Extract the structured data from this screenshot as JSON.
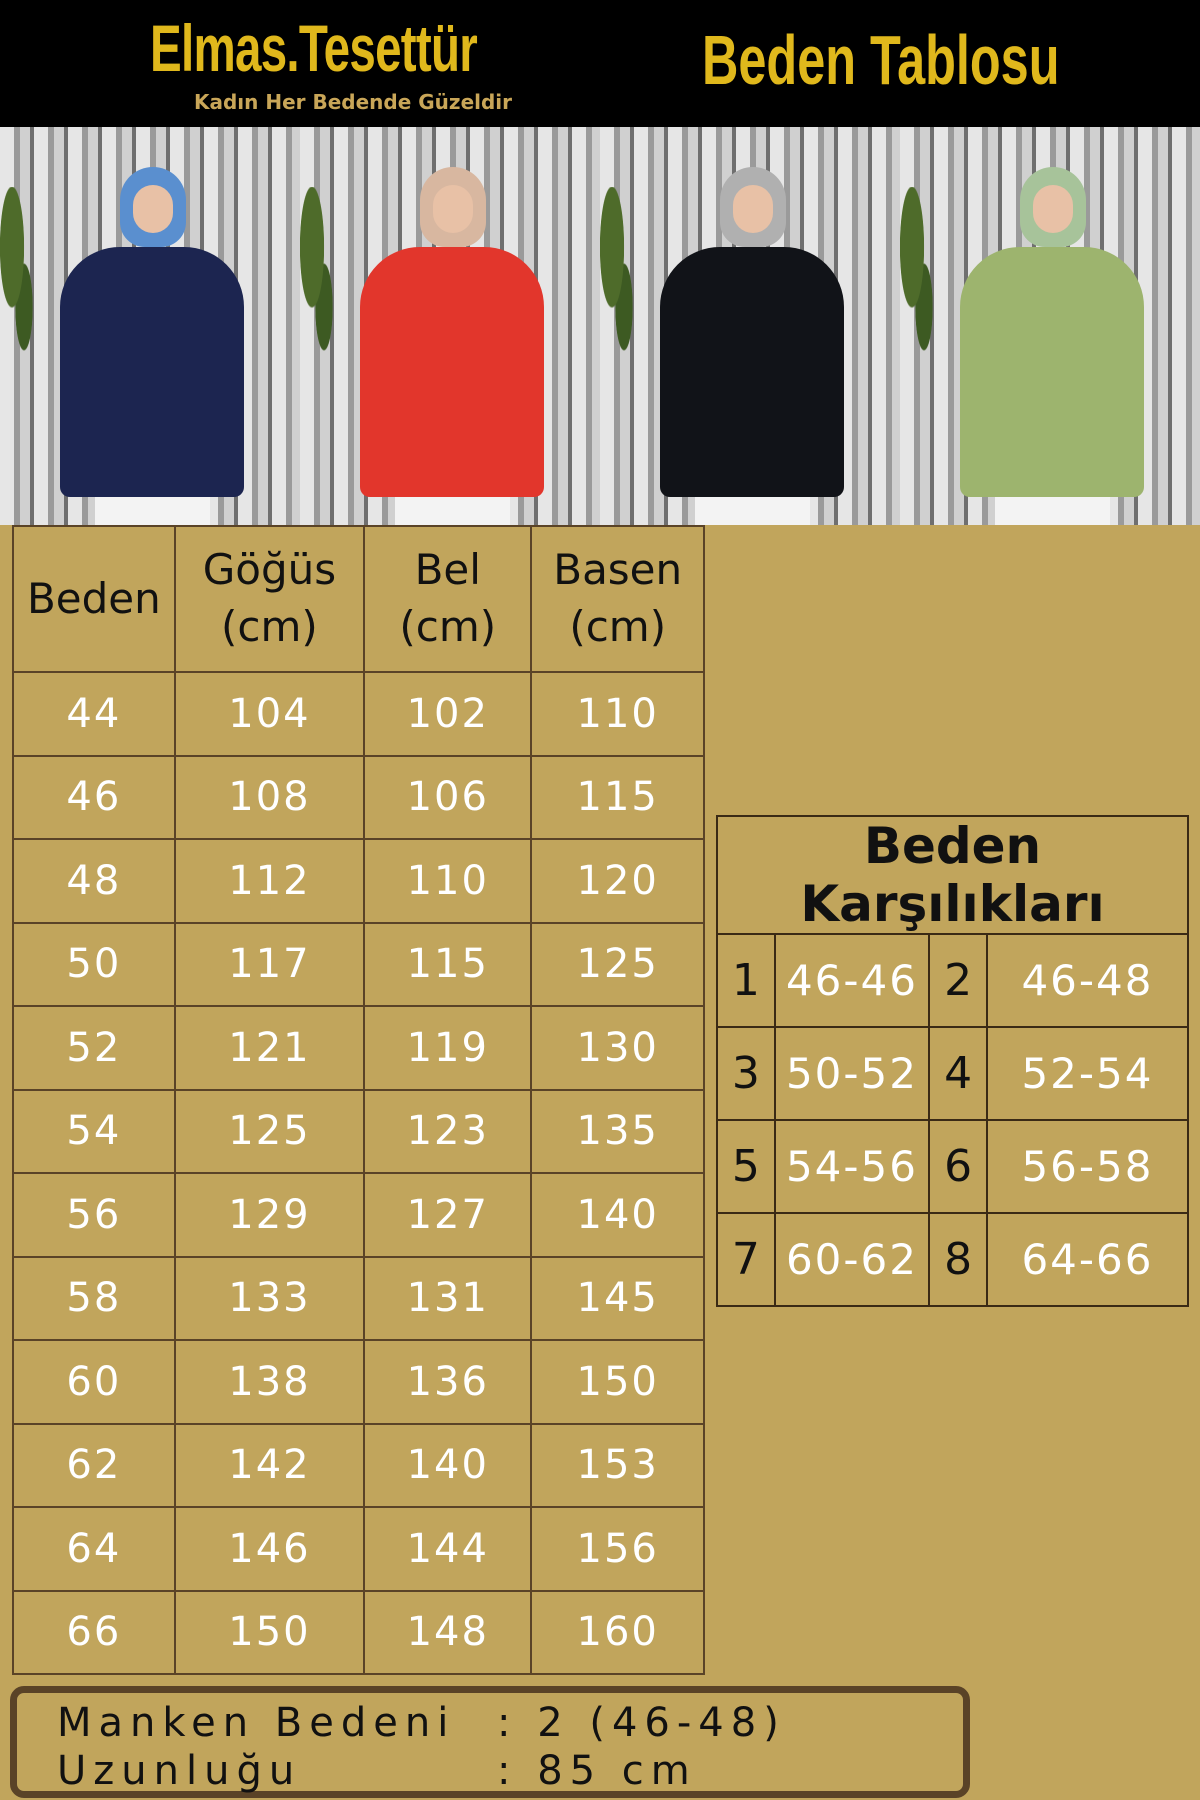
{
  "header": {
    "brand": "Elmas.Tesettür",
    "tagline": "Kadın Her Bedende Güzeldir",
    "title": "Beden Tablosu"
  },
  "colors": {
    "header_bg": "#000000",
    "gold": "#e0b81c",
    "page_bg": "#c1a55c",
    "line": "#5a4327"
  },
  "photos": [
    {
      "color": "navy",
      "hex": "#1c2550",
      "hijab": "#5a8fcf"
    },
    {
      "color": "red",
      "hex": "#e2362c",
      "hijab": "#d8b7a0"
    },
    {
      "color": "black",
      "hex": "#111318",
      "hijab": "#b0b0b0"
    },
    {
      "color": "green",
      "hex": "#9db46e",
      "hijab": "#a7c39a"
    }
  ],
  "size_table": {
    "headers": [
      "Beden",
      "Göğüs (cm)",
      "Bel (cm)",
      "Basen (cm)"
    ],
    "rows": [
      [
        "44",
        "104",
        "102",
        "110"
      ],
      [
        "46",
        "108",
        "106",
        "115"
      ],
      [
        "48",
        "112",
        "110",
        "120"
      ],
      [
        "50",
        "117",
        "115",
        "125"
      ],
      [
        "52",
        "121",
        "119",
        "130"
      ],
      [
        "54",
        "125",
        "123",
        "135"
      ],
      [
        "56",
        "129",
        "127",
        "140"
      ],
      [
        "58",
        "133",
        "131",
        "145"
      ],
      [
        "60",
        "138",
        "136",
        "150"
      ],
      [
        "62",
        "142",
        "140",
        "153"
      ],
      [
        "64",
        "146",
        "144",
        "156"
      ],
      [
        "66",
        "150",
        "148",
        "160"
      ]
    ]
  },
  "equivalents": {
    "title": "Beden Karşılıkları",
    "rows": [
      [
        "1",
        "46-46",
        "2",
        "46-48"
      ],
      [
        "3",
        "50-52",
        "4",
        "52-54"
      ],
      [
        "5",
        "54-56",
        "6",
        "56-58"
      ],
      [
        "7",
        "60-62",
        "8",
        "64-66"
      ]
    ]
  },
  "model_info": {
    "rows": [
      {
        "label": "Manken Bedeni",
        "value": ": 2 (46-48)"
      },
      {
        "label": "Uzunluğu",
        "value": ": 85 cm"
      }
    ]
  }
}
